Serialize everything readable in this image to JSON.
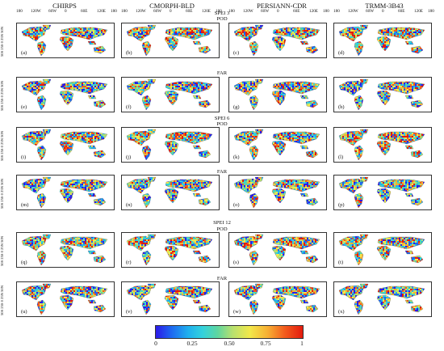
{
  "columns": [
    "CHIRPS",
    "CMORPH-BLD",
    "PERSIANN-CDR",
    "TRMM-3B43"
  ],
  "lon_ticks": [
    "180",
    "120W",
    "60W",
    "0",
    "60E",
    "120E",
    "180"
  ],
  "lat_ticks": "50S 25S 0 25N 50N",
  "sections": [
    {
      "title": "SPEI 3",
      "rows": [
        {
          "metric": "POD",
          "labels": [
            "(a)",
            "(b)",
            "(c)",
            "(d)"
          ]
        },
        {
          "metric": "FAR",
          "labels": [
            "(e)",
            "(f)",
            "(g)",
            "(h)"
          ]
        }
      ]
    },
    {
      "title": "SPEI 6",
      "rows": [
        {
          "metric": "POD",
          "labels": [
            "(i)",
            "(j)",
            "(k)",
            "(l)"
          ]
        },
        {
          "metric": "FAR",
          "labels": [
            "(m)",
            "(n)",
            "(o)",
            "(p)"
          ]
        }
      ]
    },
    {
      "title": "SPEI 12",
      "rows": [
        {
          "metric": "POD",
          "labels": [
            "(q)",
            "(r)",
            "(s)",
            "(t)"
          ]
        },
        {
          "metric": "FAR",
          "labels": [
            "(u)",
            "(v)",
            "(w)",
            "(x)"
          ]
        }
      ]
    }
  ],
  "colorbar": {
    "ticks": [
      "0",
      "0.25",
      "0.50",
      "0.75",
      "1"
    ],
    "colors": [
      "#2c1ae8",
      "#1e64f0",
      "#1fb0ee",
      "#34d2dc",
      "#5ed6a0",
      "#b6e070",
      "#f2e84a",
      "#f7b033",
      "#f25a1c",
      "#e31b0e"
    ]
  }
}
